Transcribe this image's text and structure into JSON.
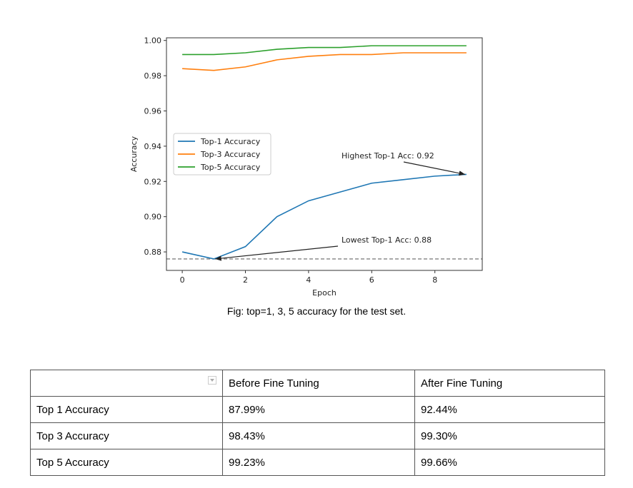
{
  "chart_data": {
    "type": "line",
    "title": "",
    "xlabel": "Epoch",
    "ylabel": "Accuracy",
    "x": [
      0,
      1,
      2,
      3,
      4,
      5,
      6,
      7,
      8,
      9
    ],
    "xticks": [
      "0",
      "2",
      "4",
      "6",
      "8"
    ],
    "yticks": [
      "0.88",
      "0.90",
      "0.92",
      "0.94",
      "0.96",
      "0.98",
      "1.00"
    ],
    "xlim": [
      -0.5,
      9.5
    ],
    "ylim": [
      0.8695,
      1.0015
    ],
    "grid": false,
    "legend_position": "center left",
    "series": [
      {
        "name": "Top-1 Accuracy",
        "color": "#1f77b4",
        "values": [
          0.88,
          0.876,
          0.883,
          0.9,
          0.909,
          0.914,
          0.919,
          0.921,
          0.923,
          0.924
        ]
      },
      {
        "name": "Top-3 Accuracy",
        "color": "#ff7f0e",
        "values": [
          0.984,
          0.983,
          0.985,
          0.989,
          0.991,
          0.992,
          0.992,
          0.993,
          0.993,
          0.993
        ]
      },
      {
        "name": "Top-5 Accuracy",
        "color": "#2ca02c",
        "values": [
          0.992,
          0.992,
          0.993,
          0.995,
          0.996,
          0.996,
          0.997,
          0.997,
          0.997,
          0.997
        ]
      }
    ],
    "hline": {
      "y": 0.876,
      "style": "dashed",
      "color": "#808080"
    },
    "annotations": [
      {
        "text": "Highest Top-1 Acc: 0.92",
        "xy": [
          9,
          0.924
        ],
        "text_xy": [
          5.0,
          0.935
        ]
      },
      {
        "text": "Lowest Top-1 Acc: 0.88",
        "xy": [
          1,
          0.876
        ],
        "text_xy": [
          5.0,
          0.883
        ]
      }
    ]
  },
  "caption": "Fig: top=1, 3, 5  accuracy for the test set.",
  "table": {
    "headers": [
      "",
      "Before Fine Tuning",
      "After Fine Tuning"
    ],
    "rows": [
      [
        "Top 1 Accuracy",
        "87.99%",
        "92.44%"
      ],
      [
        "Top 3 Accuracy",
        "98.43%",
        "99.30%"
      ],
      [
        "Top 5 Accuracy",
        "99.23%",
        "99.66%"
      ]
    ]
  }
}
